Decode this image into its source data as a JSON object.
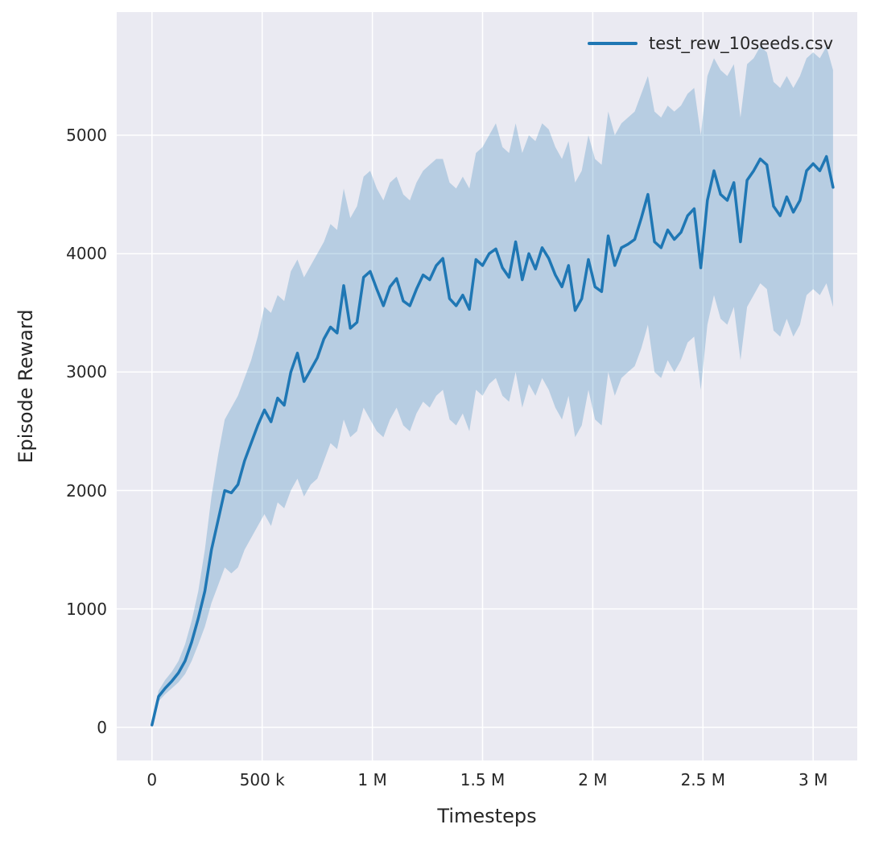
{
  "figure": {
    "xlabel": "Timesteps",
    "ylabel": "Episode Reward"
  },
  "chart_data": {
    "type": "line",
    "title": "",
    "xlabel": "Timesteps",
    "ylabel": "Episode Reward",
    "grid": true,
    "legend_position": "upper right",
    "plot_bg": "#eaeaf2",
    "grid_color": "#ffffff",
    "text_color": "#262626",
    "xlim": [
      -160000,
      3200000
    ],
    "ylim": [
      -280,
      6040
    ],
    "xticks": [
      {
        "value": 0,
        "label": "0"
      },
      {
        "value": 500000,
        "label": "500 k"
      },
      {
        "value": 1000000,
        "label": "1 M"
      },
      {
        "value": 1500000,
        "label": "1.5 M"
      },
      {
        "value": 2000000,
        "label": "2 M"
      },
      {
        "value": 2500000,
        "label": "2.5 M"
      },
      {
        "value": 3000000,
        "label": "3 M"
      }
    ],
    "yticks": [
      {
        "value": 0,
        "label": "0"
      },
      {
        "value": 1000,
        "label": "1000"
      },
      {
        "value": 2000,
        "label": "2000"
      },
      {
        "value": 3000,
        "label": "3000"
      },
      {
        "value": 4000,
        "label": "4000"
      },
      {
        "value": 5000,
        "label": "5000"
      }
    ],
    "x": [
      0,
      30000,
      60000,
      90000,
      120000,
      150000,
      180000,
      210000,
      240000,
      270000,
      300000,
      330000,
      360000,
      390000,
      420000,
      450000,
      480000,
      510000,
      540000,
      570000,
      600000,
      630000,
      660000,
      690000,
      720000,
      750000,
      780000,
      810000,
      840000,
      870000,
      900000,
      930000,
      960000,
      990000,
      1020000,
      1050000,
      1080000,
      1110000,
      1140000,
      1170000,
      1200000,
      1230000,
      1260000,
      1290000,
      1320000,
      1350000,
      1380000,
      1410000,
      1440000,
      1470000,
      1500000,
      1530000,
      1560000,
      1590000,
      1620000,
      1650000,
      1680000,
      1710000,
      1740000,
      1770000,
      1800000,
      1830000,
      1860000,
      1890000,
      1920000,
      1950000,
      1980000,
      2010000,
      2040000,
      2070000,
      2100000,
      2130000,
      2160000,
      2190000,
      2220000,
      2250000,
      2280000,
      2310000,
      2340000,
      2370000,
      2400000,
      2430000,
      2460000,
      2490000,
      2520000,
      2550000,
      2580000,
      2610000,
      2640000,
      2670000,
      2700000,
      2730000,
      2760000,
      2790000,
      2820000,
      2850000,
      2880000,
      2910000,
      2940000,
      2970000,
      3000000,
      3030000,
      3060000,
      3090000
    ],
    "series": [
      {
        "name": "test_rew_10seeds.csv",
        "color": "#1f77b4",
        "line_width": 3.5,
        "band_opacity": 0.25,
        "values": [
          20,
          260,
          330,
          390,
          460,
          560,
          720,
          920,
          1150,
          1500,
          1750,
          2000,
          1980,
          2050,
          2250,
          2400,
          2550,
          2680,
          2580,
          2780,
          2720,
          3000,
          3160,
          2920,
          3020,
          3120,
          3280,
          3380,
          3330,
          3730,
          3370,
          3420,
          3800,
          3850,
          3700,
          3560,
          3720,
          3790,
          3600,
          3560,
          3700,
          3820,
          3780,
          3900,
          3960,
          3620,
          3560,
          3650,
          3530,
          3950,
          3900,
          4000,
          4040,
          3880,
          3800,
          4100,
          3780,
          4000,
          3870,
          4050,
          3960,
          3820,
          3720,
          3900,
          3520,
          3620,
          3950,
          3720,
          3680,
          4150,
          3900,
          4050,
          4080,
          4120,
          4300,
          4500,
          4100,
          4050,
          4200,
          4120,
          4180,
          4320,
          4380,
          3880,
          4450,
          4700,
          4500,
          4450,
          4600,
          4100,
          4620,
          4700,
          4800,
          4750,
          4400,
          4320,
          4480,
          4350,
          4450,
          4700,
          4760,
          4700,
          4820,
          4560
        ],
        "band_lower": [
          10,
          220,
          280,
          330,
          380,
          450,
          560,
          700,
          850,
          1050,
          1200,
          1350,
          1300,
          1350,
          1500,
          1600,
          1700,
          1800,
          1700,
          1900,
          1850,
          2000,
          2100,
          1950,
          2050,
          2100,
          2250,
          2400,
          2350,
          2600,
          2450,
          2500,
          2700,
          2600,
          2500,
          2450,
          2600,
          2700,
          2550,
          2500,
          2650,
          2750,
          2700,
          2800,
          2850,
          2600,
          2550,
          2650,
          2500,
          2850,
          2800,
          2900,
          2950,
          2800,
          2750,
          3000,
          2700,
          2900,
          2800,
          2950,
          2850,
          2700,
          2600,
          2800,
          2450,
          2550,
          2850,
          2600,
          2550,
          3000,
          2800,
          2950,
          3000,
          3050,
          3200,
          3400,
          3000,
          2950,
          3100,
          3000,
          3100,
          3250,
          3300,
          2850,
          3400,
          3650,
          3450,
          3400,
          3550,
          3100,
          3550,
          3650,
          3750,
          3700,
          3350,
          3300,
          3450,
          3300,
          3400,
          3650,
          3700,
          3650,
          3750,
          3550
        ],
        "band_upper": [
          40,
          310,
          400,
          470,
          560,
          700,
          900,
          1150,
          1500,
          1950,
          2300,
          2600,
          2700,
          2800,
          2950,
          3100,
          3300,
          3550,
          3500,
          3650,
          3600,
          3850,
          3950,
          3800,
          3900,
          4000,
          4100,
          4250,
          4200,
          4550,
          4300,
          4400,
          4650,
          4700,
          4550,
          4450,
          4600,
          4650,
          4500,
          4450,
          4600,
          4700,
          4750,
          4800,
          4800,
          4600,
          4550,
          4650,
          4550,
          4850,
          4900,
          5000,
          5100,
          4900,
          4850,
          5100,
          4850,
          5000,
          4950,
          5100,
          5050,
          4900,
          4800,
          4950,
          4600,
          4700,
          5000,
          4800,
          4750,
          5200,
          5000,
          5100,
          5150,
          5200,
          5350,
          5500,
          5200,
          5150,
          5250,
          5200,
          5250,
          5350,
          5400,
          5000,
          5500,
          5650,
          5550,
          5500,
          5600,
          5150,
          5600,
          5650,
          5750,
          5700,
          5450,
          5400,
          5500,
          5400,
          5500,
          5650,
          5700,
          5650,
          5750,
          5550
        ]
      }
    ]
  }
}
